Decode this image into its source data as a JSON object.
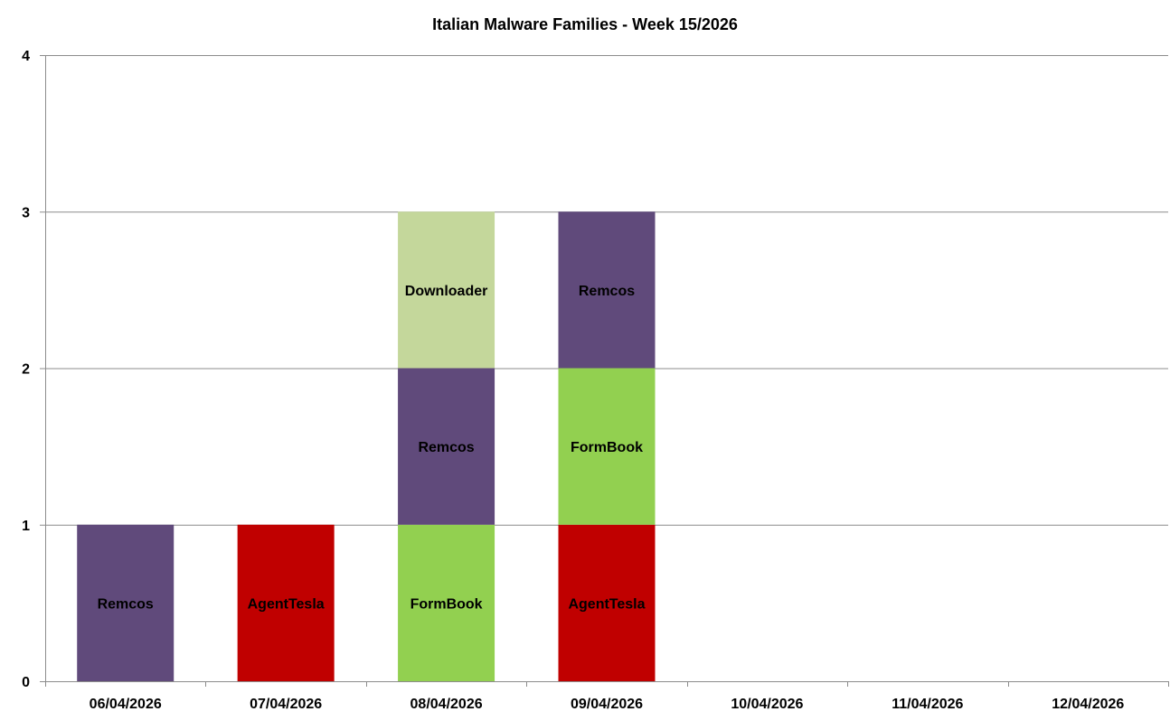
{
  "chart_data": {
    "type": "bar",
    "stacked": true,
    "title": "Italian Malware Families - Week 15/2026",
    "xlabel": "",
    "ylabel": "",
    "categories": [
      "06/04/2026",
      "07/04/2026",
      "08/04/2026",
      "09/04/2026",
      "10/04/2026",
      "11/04/2026",
      "12/04/2026"
    ],
    "ylim": [
      0,
      4
    ],
    "yticks": [
      "0",
      "1",
      "2",
      "3",
      "4"
    ],
    "grid": true,
    "legend": "none",
    "stacks": [
      [
        {
          "label": "Remcos",
          "value": 1,
          "color": "#604a7b"
        }
      ],
      [
        {
          "label": "AgentTesla",
          "value": 1,
          "color": "#c00000"
        }
      ],
      [
        {
          "label": "FormBook",
          "value": 1,
          "color": "#92d050"
        },
        {
          "label": "Remcos",
          "value": 1,
          "color": "#604a7b"
        },
        {
          "label": "Downloader",
          "value": 1,
          "color": "#c4d79b"
        }
      ],
      [
        {
          "label": "AgentTesla",
          "value": 1,
          "color": "#c00000"
        },
        {
          "label": "FormBook",
          "value": 1,
          "color": "#92d050"
        },
        {
          "label": "Remcos",
          "value": 1,
          "color": "#604a7b"
        }
      ],
      [],
      [],
      []
    ]
  }
}
